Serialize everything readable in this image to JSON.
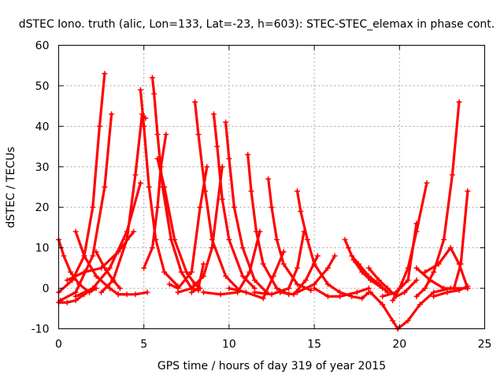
{
  "chart_data": {
    "type": "line",
    "title": "dSTEC Iono. truth (alic, Lon=133, Lat=-23, h=603): STEC-STEC_elemax in phase cont.",
    "xlabel": "GPS time / hours of day 319 of year 2015",
    "ylabel": "dSTEC  / TECUs",
    "xlim": [
      0,
      25
    ],
    "ylim": [
      -10,
      60
    ],
    "xticks": [
      0,
      5,
      10,
      15,
      20,
      25
    ],
    "yticks": [
      -10,
      0,
      10,
      20,
      30,
      40,
      50,
      60
    ],
    "grid": true,
    "marker": "plus",
    "color": "#ff0000",
    "series": [
      {
        "x": [
          0.0,
          0.3,
          0.7,
          1.2,
          1.8,
          2.2
        ],
        "y": [
          12,
          8,
          4,
          1,
          -1,
          0
        ]
      },
      {
        "x": [
          0.0,
          0.8,
          1.5,
          2.0,
          2.4,
          2.7
        ],
        "y": [
          -1,
          2,
          8,
          20,
          40,
          53
        ]
      },
      {
        "x": [
          0.0,
          0.5,
          1.0,
          1.5,
          2.0
        ],
        "y": [
          -3.5,
          -3.5,
          -3,
          -1.5,
          0
        ]
      },
      {
        "x": [
          0.1,
          1.0,
          2.0,
          2.7,
          3.1
        ],
        "y": [
          -3,
          -1,
          8,
          25,
          43
        ]
      },
      {
        "x": [
          1.0,
          1.5,
          2.2,
          3.0,
          3.5,
          4.0
        ],
        "y": [
          14,
          8,
          3,
          0,
          -1.5,
          -1.5
        ]
      },
      {
        "x": [
          0.5,
          1.5,
          2.5,
          3.5,
          4.4
        ],
        "y": [
          2,
          4,
          5,
          9,
          14
        ]
      },
      {
        "x": [
          1.0,
          2.0,
          3.0,
          4.0,
          4.8
        ],
        "y": [
          -2,
          0,
          5,
          14,
          26
        ]
      },
      {
        "x": [
          2.2,
          2.7,
          3.2,
          3.6
        ],
        "y": [
          9,
          5,
          2,
          0
        ]
      },
      {
        "x": [
          2.5,
          3.2,
          4.0,
          4.5,
          4.9,
          5.1
        ],
        "y": [
          -1,
          2,
          12,
          28,
          43,
          42
        ]
      },
      {
        "x": [
          3.5,
          4.5,
          5.2
        ],
        "y": [
          -1.5,
          -1.5,
          -1
        ]
      },
      {
        "x": [
          4.8,
          5.0,
          5.3,
          5.7,
          6.2,
          7.0
        ],
        "y": [
          49,
          40,
          25,
          12,
          4,
          0.5
        ]
      },
      {
        "x": [
          5.5,
          5.6,
          5.8,
          6.1,
          6.6,
          7.2,
          7.8,
          8.2
        ],
        "y": [
          52,
          48,
          38,
          25,
          12,
          4,
          0,
          -0.5
        ]
      },
      {
        "x": [
          5.0,
          5.5,
          5.8,
          6.0,
          6.3
        ],
        "y": [
          5,
          10,
          20,
          30,
          38
        ]
      },
      {
        "x": [
          5.8,
          6.2,
          6.8,
          7.5,
          8.0,
          8.3
        ],
        "y": [
          32,
          25,
          12,
          4,
          1,
          0
        ]
      },
      {
        "x": [
          6.5,
          7.0,
          7.8,
          8.3,
          8.7
        ],
        "y": [
          1,
          0,
          4,
          20,
          30
        ]
      },
      {
        "x": [
          7.0,
          7.8,
          8.5,
          9.0,
          9.6
        ],
        "y": [
          -1,
          0,
          3,
          10,
          30
        ]
      },
      {
        "x": [
          8.0,
          8.2,
          8.6,
          9.0,
          9.8,
          10.6
        ],
        "y": [
          46,
          38,
          24,
          12,
          3,
          -0.5
        ]
      },
      {
        "x": [
          9.1,
          9.3,
          9.6,
          10.0,
          10.8,
          11.5
        ],
        "y": [
          43,
          35,
          22,
          12,
          3,
          0
        ]
      },
      {
        "x": [
          9.8,
          10.0,
          10.3,
          10.8,
          11.5,
          12.2
        ],
        "y": [
          41,
          32,
          20,
          10,
          2,
          -1
        ]
      },
      {
        "x": [
          7.8,
          8.2,
          8.5
        ],
        "y": [
          -1,
          0,
          6
        ]
      },
      {
        "x": [
          8.5,
          9.5,
          10.5,
          11.2,
          11.8
        ],
        "y": [
          -1,
          -1.5,
          -1,
          4,
          14
        ]
      },
      {
        "x": [
          11.1,
          11.3,
          11.6,
          12.0,
          12.8,
          13.5
        ],
        "y": [
          33,
          24,
          14,
          6,
          0,
          -1.5
        ]
      },
      {
        "x": [
          10.0,
          11.0,
          12.0,
          12.6,
          13.2
        ],
        "y": [
          0,
          -1,
          -2.5,
          3,
          9
        ]
      },
      {
        "x": [
          12.3,
          12.5,
          12.8,
          13.2,
          14.0,
          14.8
        ],
        "y": [
          27,
          20,
          12,
          6,
          1,
          -0.5
        ]
      },
      {
        "x": [
          11.5,
          12.5,
          13.5,
          14.0,
          14.4
        ],
        "y": [
          -1,
          -1.5,
          0,
          5,
          14
        ]
      },
      {
        "x": [
          14.0,
          14.2,
          14.6,
          15.0,
          15.8,
          16.5
        ],
        "y": [
          24,
          19,
          12,
          6,
          1,
          -1
        ]
      },
      {
        "x": [
          13.0,
          13.8,
          14.5,
          15.2
        ],
        "y": [
          -1,
          -1.5,
          2,
          8
        ]
      },
      {
        "x": [
          15.0,
          15.8,
          16.5,
          17.5,
          18.2
        ],
        "y": [
          0,
          -2,
          -2,
          -1,
          0
        ]
      },
      {
        "x": [
          14.0,
          15.0,
          15.8,
          16.2
        ],
        "y": [
          -1,
          1,
          5,
          8
        ]
      },
      {
        "x": [
          16.8,
          17.0,
          17.3,
          17.8,
          18.3,
          19.0
        ],
        "y": [
          12,
          10,
          7,
          4,
          2,
          0
        ]
      },
      {
        "x": [
          17.2,
          17.6,
          18.2,
          18.8,
          19.3
        ],
        "y": [
          8,
          6,
          3,
          1,
          -1
        ]
      },
      {
        "x": [
          16.5,
          17.2,
          17.8,
          18.2
        ],
        "y": [
          -1,
          -2,
          -2.5,
          -1
        ]
      },
      {
        "x": [
          18.2,
          18.8,
          19.3,
          19.8,
          20.3,
          21.0
        ],
        "y": [
          5,
          2,
          0,
          -2,
          -1,
          2
        ]
      },
      {
        "x": [
          18.3,
          19.0,
          19.6,
          19.9
        ],
        "y": [
          -1,
          -4,
          -8,
          -10
        ]
      },
      {
        "x": [
          19.6,
          20.0,
          20.5,
          21.0,
          21.6
        ],
        "y": [
          -3,
          0,
          5,
          14,
          26
        ]
      },
      {
        "x": [
          19.0,
          19.8,
          20.5,
          21.0
        ],
        "y": [
          -2,
          -1,
          2,
          16
        ]
      },
      {
        "x": [
          19.9,
          20.5,
          21.2,
          22.0,
          23.0,
          24.0
        ],
        "y": [
          -10,
          -8,
          -4,
          -1,
          0,
          0
        ]
      },
      {
        "x": [
          21.0,
          21.5,
          22.0,
          22.6,
          23.1,
          23.5
        ],
        "y": [
          -2,
          0,
          4,
          12,
          28,
          46
        ]
      },
      {
        "x": [
          21.0,
          21.8,
          22.6,
          23.2,
          23.6,
          24.0
        ],
        "y": [
          5,
          2,
          0,
          0,
          6,
          24
        ]
      },
      {
        "x": [
          21.5,
          22.3,
          23.0,
          23.5,
          24.0
        ],
        "y": [
          4,
          6,
          10,
          6,
          0
        ]
      },
      {
        "x": [
          22.0,
          22.8,
          23.5,
          24.0
        ],
        "y": [
          -2,
          -1,
          -0.5,
          0.5
        ]
      }
    ]
  }
}
